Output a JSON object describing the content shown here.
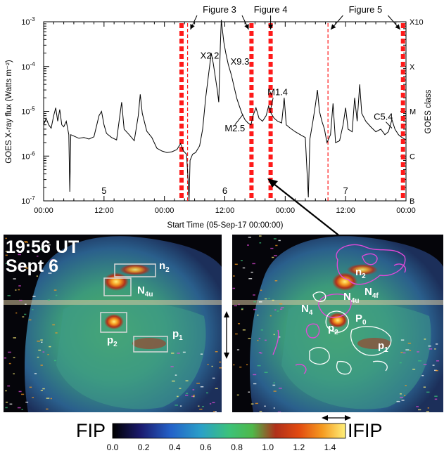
{
  "chart_data": {
    "type": "line",
    "title": "",
    "xlabel": "Start Time (05-Sep-17 00:00:00)",
    "ylabel": "GOES X-ray flux (Watts m⁻²)",
    "y2label": "GOES class",
    "yscale": "log",
    "xlim_hours": [
      0,
      72
    ],
    "ylim": [
      1e-07,
      0.001
    ],
    "x_ticks": [
      "00:00",
      "12:00",
      "00:00",
      "12:00",
      "00:00",
      "12:00",
      "00:00"
    ],
    "y_ticks": [
      {
        "base": "10",
        "exp": "-7",
        "value": 1e-07
      },
      {
        "base": "10",
        "exp": "-6",
        "value": 1e-06
      },
      {
        "base": "10",
        "exp": "-5",
        "value": 1e-05
      },
      {
        "base": "10",
        "exp": "-4",
        "value": 0.0001
      },
      {
        "base": "10",
        "exp": "-3",
        "value": 0.001
      }
    ],
    "class_ticks": [
      {
        "label": "B",
        "value": 1e-07
      },
      {
        "label": "C",
        "value": 1e-06
      },
      {
        "label": "M",
        "value": 1e-05
      },
      {
        "label": "X",
        "value": 0.0001
      },
      {
        "label": "X10",
        "value": 0.001
      }
    ],
    "day_labels": [
      {
        "label": "5",
        "hour": 12
      },
      {
        "label": "6",
        "hour": 36
      },
      {
        "label": "7",
        "hour": 60
      }
    ],
    "flare_labels": [
      {
        "label": "X2.2",
        "hour": 33.0,
        "flux": 0.00015
      },
      {
        "label": "X9.3",
        "hour": 39.0,
        "flux": 0.00011
      },
      {
        "label": "M1.4",
        "hour": 46.5,
        "flux": 2.3e-05
      },
      {
        "label": "M2.5",
        "hour": 38.0,
        "flux": 3.6e-06
      },
      {
        "label": "C5.4",
        "hour": 67.5,
        "flux": 6.5e-06
      }
    ],
    "thick_dashed_markers_hours": [
      27.4,
      41.3,
      45.1,
      71.4
    ],
    "thin_dashed_markers_hours": [
      28.6,
      56.5
    ],
    "figure_refs": [
      {
        "label": "Figure 3",
        "from_hour": 28.6,
        "to_hour": 41.3
      },
      {
        "label": "Figure 4",
        "at_hour": 45.1
      },
      {
        "label": "Figure 5",
        "from_hour": 56.5,
        "to_hour": 71.4
      }
    ],
    "series": [
      {
        "color": "#000000",
        "points": [
          [
            0,
            5e-06
          ],
          [
            0.5,
            7e-06
          ],
          [
            1,
            5e-06
          ],
          [
            1.5,
            4.2e-06
          ],
          [
            2,
            8e-06
          ],
          [
            2.4,
            1.2e-05
          ],
          [
            2.8,
            6e-06
          ],
          [
            3.2,
            1.1e-05
          ],
          [
            3.6,
            5e-06
          ],
          [
            4,
            4.5e-06
          ],
          [
            4.5,
            6e-06
          ],
          [
            5,
            3e-06
          ],
          [
            5.2,
            1.6e-07
          ],
          [
            5.4,
            3e-06
          ],
          [
            6,
            2.8e-06
          ],
          [
            7,
            2.5e-06
          ],
          [
            8,
            2.6e-06
          ],
          [
            9,
            2.4e-06
          ],
          [
            10,
            2.7e-06
          ],
          [
            11,
            8e-06
          ],
          [
            11.5,
            1e-05
          ],
          [
            12,
            5e-06
          ],
          [
            12.5,
            3.2e-06
          ],
          [
            13.5,
            2.6e-06
          ],
          [
            14.5,
            2.3e-06
          ],
          [
            15.5,
            1.6e-05
          ],
          [
            16,
            4e-06
          ],
          [
            17,
            3e-06
          ],
          [
            18,
            2.2e-06
          ],
          [
            18.8,
            8e-06
          ],
          [
            19.2,
            2.4e-05
          ],
          [
            19.6,
            9e-06
          ],
          [
            20.5,
            3.6e-06
          ],
          [
            21.5,
            2.6e-06
          ],
          [
            22.5,
            1.5e-06
          ],
          [
            23.5,
            1.3e-06
          ],
          [
            24.5,
            1.2e-06
          ],
          [
            25.5,
            1.25e-06
          ],
          [
            26.5,
            1.4e-06
          ],
          [
            27.2,
            1.9e-06
          ],
          [
            27.8,
            1.3e-06
          ],
          [
            28.4,
            1.1e-06
          ],
          [
            28.7,
            3e-07
          ],
          [
            28.9,
            1e-07
          ],
          [
            29.1,
            8e-07
          ],
          [
            29.6,
            1.1e-06
          ],
          [
            30.2,
            1.2e-06
          ],
          [
            31,
            1.7e-06
          ],
          [
            31.6,
            4e-06
          ],
          [
            32.2,
            2e-05
          ],
          [
            32.8,
            7e-05
          ],
          [
            33.3,
            0.0002
          ],
          [
            33.7,
            0.00012
          ],
          [
            34.1,
            6e-05
          ],
          [
            34.5,
            3e-05
          ],
          [
            34.8,
            1.6e-05
          ],
          [
            35.1,
            0.00028
          ],
          [
            35.3,
            0.0011
          ],
          [
            35.5,
            0.0007
          ],
          [
            35.8,
            0.00035
          ],
          [
            36.2,
            0.0002
          ],
          [
            36.7,
            0.00011
          ],
          [
            37.3,
            6.5e-05
          ],
          [
            37.9,
            3.3e-05
          ],
          [
            38.4,
            1.9e-05
          ],
          [
            38.9,
            1.3e-05
          ],
          [
            39.4,
            9e-06
          ],
          [
            40,
            6.5e-06
          ],
          [
            40.6,
            5.5e-06
          ],
          [
            41.2,
            5e-06
          ],
          [
            41.6,
            8e-06
          ],
          [
            42.2,
            1.2e-05
          ],
          [
            42.8,
            7e-06
          ],
          [
            43.5,
            6e-06
          ],
          [
            44.2,
            8e-06
          ],
          [
            44.7,
            1.3e-05
          ],
          [
            45.2,
            9e-06
          ],
          [
            45.8,
            7e-06
          ],
          [
            46.5,
            6e-06
          ],
          [
            47.3,
            5.5e-06
          ],
          [
            47.8,
            2e-05
          ],
          [
            48.2,
            5e-06
          ],
          [
            49,
            4.2e-06
          ],
          [
            50,
            3.5e-06
          ],
          [
            51,
            3e-06
          ],
          [
            52,
            2.6e-06
          ],
          [
            52.6,
            1.2e-07
          ],
          [
            52.9,
            2.4e-06
          ],
          [
            53.5,
            6e-06
          ],
          [
            54,
            1.4e-05
          ],
          [
            54.4,
            3e-05
          ],
          [
            54.8,
            1e-05
          ],
          [
            55.3,
            6e-06
          ],
          [
            55.8,
            4e-06
          ],
          [
            56.3,
            2e-06
          ],
          [
            57,
            3e-06
          ],
          [
            57.5,
            1.5e-05
          ],
          [
            58,
            2e-06
          ],
          [
            58.8,
            2.2e-06
          ],
          [
            59.5,
            5e-06
          ],
          [
            60,
            1.2e-05
          ],
          [
            60.5,
            4e-06
          ],
          [
            61.3,
            3.5e-06
          ],
          [
            61.8,
            2e-05
          ],
          [
            62.3,
            6e-06
          ],
          [
            62.8,
            4e-05
          ],
          [
            63.2,
            9e-06
          ],
          [
            64,
            6e-06
          ],
          [
            65,
            4.5e-06
          ],
          [
            66,
            3.5e-06
          ],
          [
            67,
            4e-06
          ],
          [
            67.8,
            3e-06
          ],
          [
            68.5,
            3.5e-06
          ],
          [
            69.2,
            6.5e-06
          ],
          [
            69.8,
            4e-06
          ],
          [
            70.5,
            3e-06
          ],
          [
            71.2,
            2.6e-06
          ],
          [
            72,
            2.3e-06
          ]
        ]
      }
    ]
  },
  "panels": {
    "left": {
      "time_label": "19:56 UT",
      "date_label": "Sept 6",
      "regions": [
        {
          "label": "n",
          "sub": "2"
        },
        {
          "label": "N",
          "sub": "4u"
        },
        {
          "label": "p",
          "sub": "2"
        },
        {
          "label": "p",
          "sub": "1"
        }
      ]
    },
    "right": {
      "regions": [
        {
          "label": "n",
          "sub": "2"
        },
        {
          "label": "N",
          "sub": "4f"
        },
        {
          "label": "N",
          "sub": "4u"
        },
        {
          "label": "N",
          "sub": "4"
        },
        {
          "label": "p",
          "sub": "2"
        },
        {
          "label": "P",
          "sub": "0"
        },
        {
          "label": "p",
          "sub": "1"
        }
      ]
    }
  },
  "colorbar": {
    "left_label": "FIP",
    "right_label": "IFIP",
    "ticks": [
      "0.0",
      "0.2",
      "0.4",
      "0.6",
      "0.8",
      "1.0",
      "1.2",
      "1.4"
    ],
    "range": [
      0.0,
      1.5
    ],
    "colors": [
      "#000000",
      "#1a1a6e",
      "#2462c9",
      "#2aa0c8",
      "#3cc27a",
      "#4fb84a",
      "#b0301a",
      "#e24a10",
      "#f59a20",
      "#fff07a"
    ]
  }
}
